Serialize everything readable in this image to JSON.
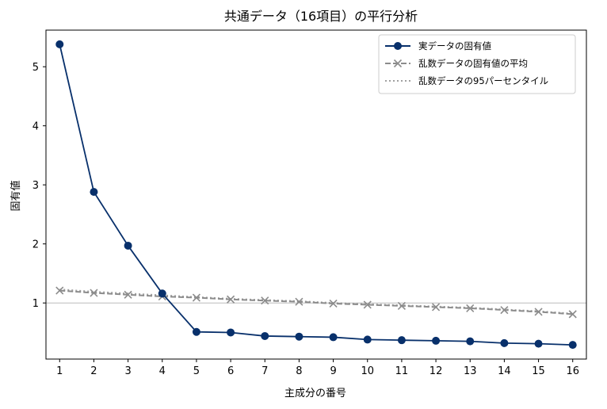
{
  "chart_data": {
    "type": "line",
    "title": "共通データ（16項目）の平行分析",
    "xlabel": "主成分の番号",
    "ylabel": "固有値",
    "x": [
      1,
      2,
      3,
      4,
      5,
      6,
      7,
      8,
      9,
      10,
      11,
      12,
      13,
      14,
      15,
      16
    ],
    "xlim": [
      0.6,
      16.4
    ],
    "ylim": [
      0.05,
      5.62
    ],
    "yticks": [
      1,
      2,
      3,
      4,
      5
    ],
    "reference_line": {
      "y": 1.0,
      "color": "#bbbbbb"
    },
    "grid": false,
    "legend_position": "top-right",
    "series": [
      {
        "name": "実データの固有値",
        "style": "solid",
        "marker": "circle",
        "color": "#08306b",
        "values": [
          5.38,
          2.88,
          1.97,
          1.16,
          0.51,
          0.5,
          0.44,
          0.43,
          0.42,
          0.38,
          0.37,
          0.36,
          0.35,
          0.32,
          0.31,
          0.29
        ]
      },
      {
        "name": "乱数データの固有値の平均",
        "style": "dashed",
        "marker": "x",
        "color": "#8c8c8c",
        "values": [
          1.21,
          1.17,
          1.14,
          1.11,
          1.09,
          1.06,
          1.04,
          1.02,
          0.99,
          0.97,
          0.95,
          0.93,
          0.91,
          0.88,
          0.85,
          0.81
        ]
      },
      {
        "name": "乱数データの95パーセンタイル",
        "style": "dotted",
        "marker": "none",
        "color": "#a0a0a0",
        "values": [
          1.23,
          1.19,
          1.16,
          1.13,
          1.1,
          1.07,
          1.05,
          1.03,
          1.0,
          0.98,
          0.96,
          0.94,
          0.92,
          0.89,
          0.86,
          0.82
        ]
      }
    ]
  }
}
